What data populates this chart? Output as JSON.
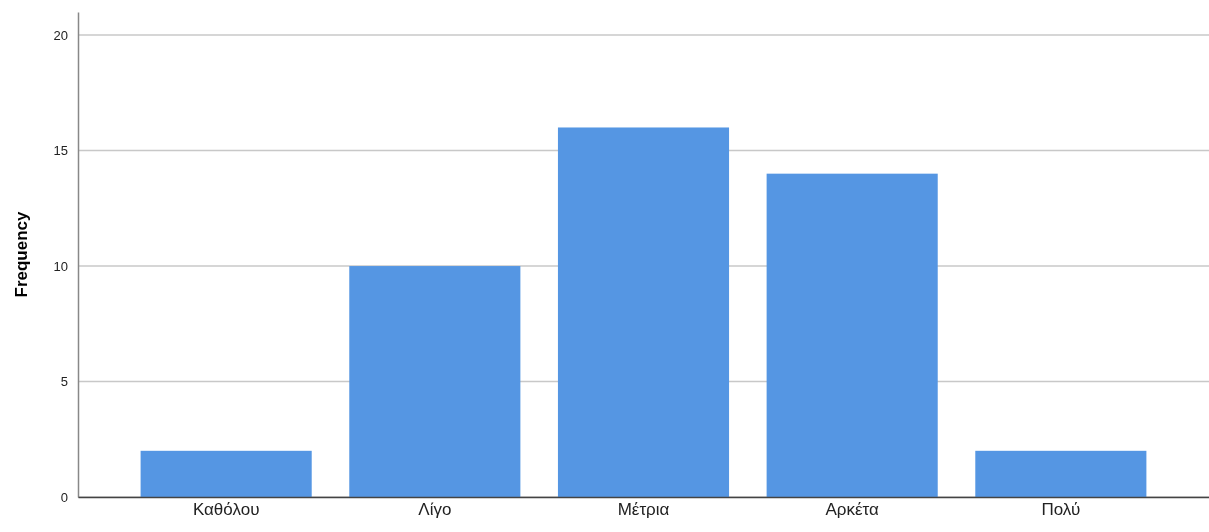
{
  "chart_data": {
    "type": "bar",
    "ylabel": "Frequency",
    "categories": [
      "Καθόλου",
      "Λίγο",
      "Μέτρια",
      "Αρκέτα",
      "Πολύ"
    ],
    "values": [
      2,
      10,
      16,
      14,
      2
    ],
    "color": "#5596e3",
    "ylim": [
      0,
      21
    ],
    "yticks": [
      0,
      5,
      10,
      15,
      20
    ],
    "grid": "y"
  }
}
